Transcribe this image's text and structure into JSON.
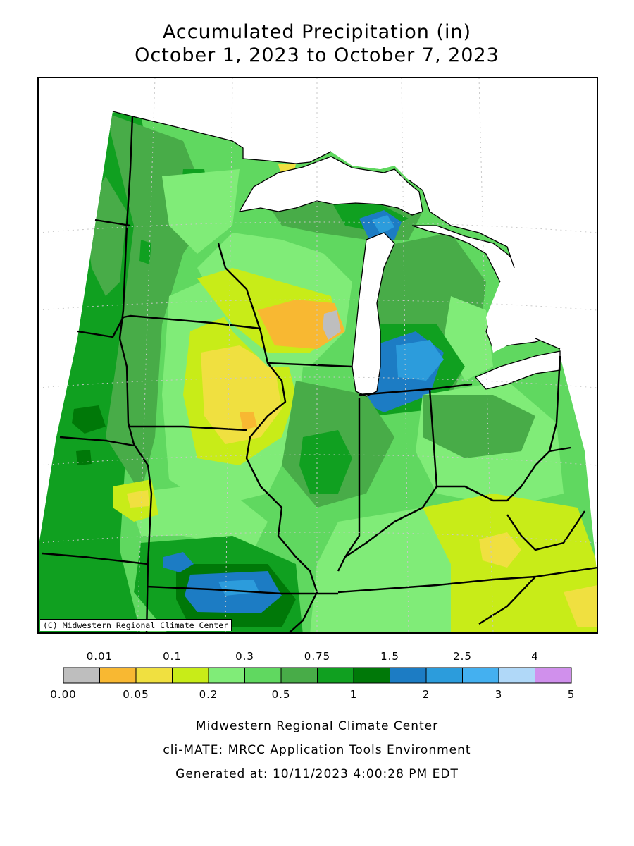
{
  "title": {
    "line1": "Accumulated Precipitation (in)",
    "line2": "October 1, 2023 to October 7, 2023"
  },
  "map": {
    "credit": "(C) Midwestern Regional Climate Center",
    "variable": "accumulated precipitation",
    "units": "in",
    "regions": {
      "heaviest": [
        "southeast Missouri",
        "northwest Michigan (upper lakes)",
        "southwest Lower Michigan"
      ],
      "driest": [
        "eastern Wisconsin",
        "south-central Kentucky",
        "southern Iowa"
      ]
    }
  },
  "legend": {
    "top_labels": [
      "0.01",
      "0.1",
      "0.3",
      "0.75",
      "1.5",
      "2.5",
      "4"
    ],
    "bottom_labels": [
      "0.00",
      "0.05",
      "0.2",
      "0.5",
      "1",
      "2",
      "3",
      "5"
    ],
    "colors": [
      "#bebebe",
      "#f8b832",
      "#f0e040",
      "#c8ec18",
      "#80ec78",
      "#60d860",
      "#48ac48",
      "#10a020",
      "#007808",
      "#1c7cc4",
      "#2c9cdc",
      "#44b0f0",
      "#b0d8f8",
      "#d090ec"
    ]
  },
  "footer": {
    "line1": "Midwestern Regional Climate Center",
    "line2": "cli-MATE: MRCC Application Tools Environment",
    "line3": "Generated at: 10/11/2023 4:00:28 PM EDT"
  }
}
